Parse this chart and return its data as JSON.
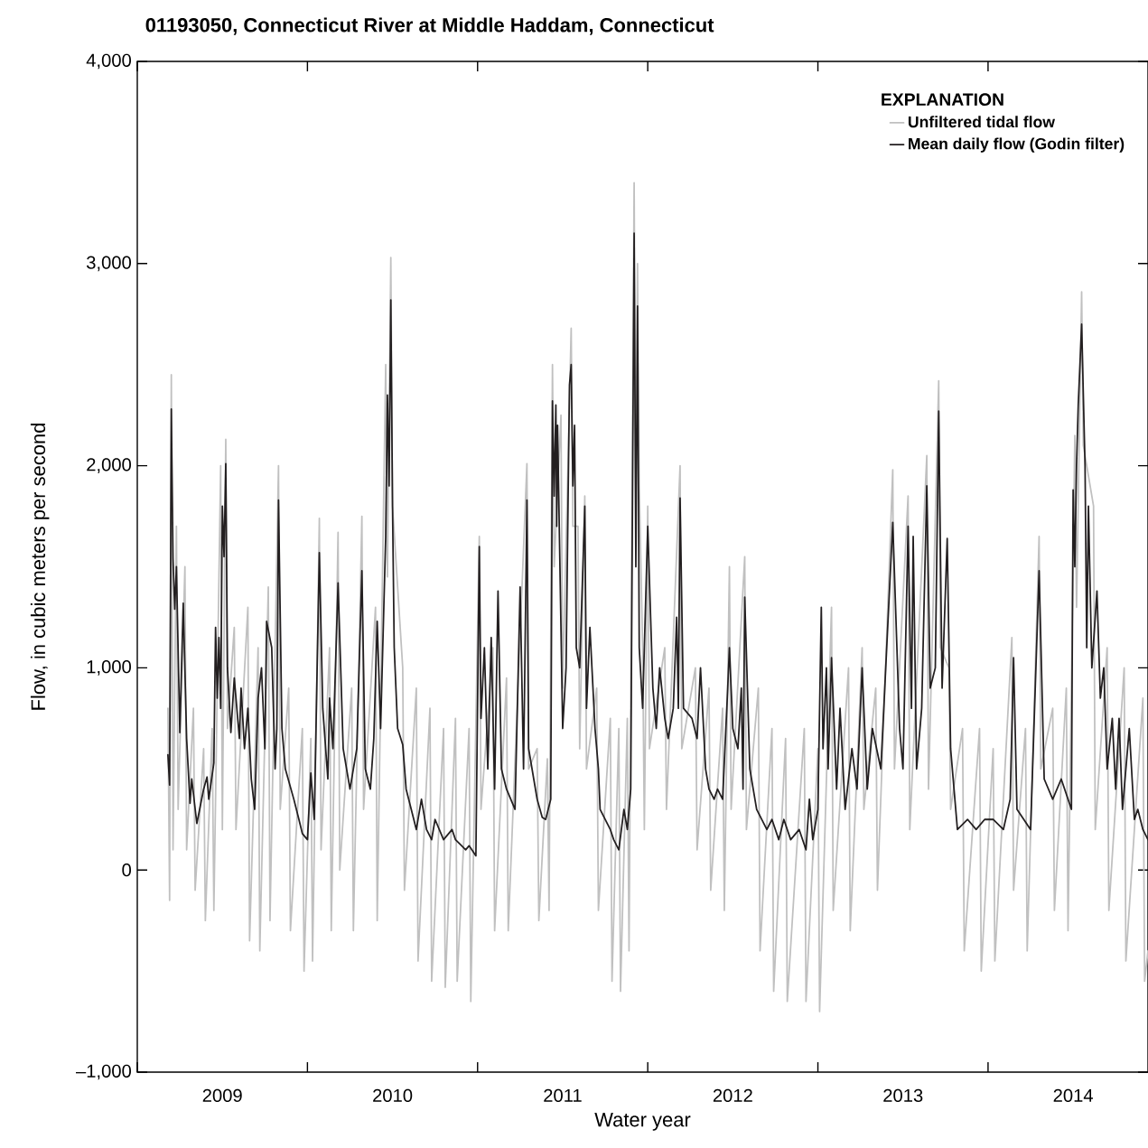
{
  "chart_data": {
    "type": "line",
    "title": "01193050, Connecticut River at Middle Haddam, Connecticut",
    "xlabel": "Water year",
    "ylabel": "Flow, in cubic meters per second",
    "legend_title": "EXPLANATION",
    "legend": "top right",
    "xlim": [
      2009,
      2014.94
    ],
    "ylim": [
      -1000,
      4000
    ],
    "xticks": [
      {
        "value": 2009,
        "label": null
      },
      {
        "value": 2010,
        "label": null
      },
      {
        "value": 2011,
        "label": null
      },
      {
        "value": 2012,
        "label": null
      },
      {
        "value": 2013,
        "label": null
      },
      {
        "value": 2014,
        "label": null
      },
      {
        "value": 2009.5,
        "label": "2009"
      },
      {
        "value": 2010.5,
        "label": "2010"
      },
      {
        "value": 2011.5,
        "label": "2011"
      },
      {
        "value": 2012.5,
        "label": "2012"
      },
      {
        "value": 2013.5,
        "label": "2013"
      },
      {
        "value": 2014.5,
        "label": "2014"
      }
    ],
    "yticks": [
      {
        "value": -1000,
        "label": "–1,000"
      },
      0,
      {
        "value": 1000,
        "label": "1,000"
      },
      {
        "value": 2000,
        "label": "2,000"
      },
      {
        "value": 3000,
        "label": "3,000"
      },
      {
        "value": 4000,
        "label": "4,000"
      }
    ],
    "series": [
      {
        "name": "Unfiltered tidal flow",
        "color": "#c0c0c0",
        "x": [
          2009.18,
          2009.19,
          2009.2,
          2009.21,
          2009.23,
          2009.24,
          2009.28,
          2009.29,
          2009.33,
          2009.34,
          2009.39,
          2009.4,
          2009.44,
          2009.45,
          2009.49,
          2009.5,
          2009.52,
          2009.53,
          2009.57,
          2009.58,
          2009.65,
          2009.66,
          2009.71,
          2009.72,
          2009.77,
          2009.78,
          2009.83,
          2009.84,
          2009.89,
          2009.9,
          2009.97,
          2009.98,
          2010.02,
          2010.03,
          2010.07,
          2010.08,
          2010.13,
          2010.14,
          2010.18,
          2010.19,
          2010.26,
          2010.27,
          2010.32,
          2010.33,
          2010.4,
          2010.41,
          2010.46,
          2010.47,
          2010.49,
          2010.5,
          2010.56,
          2010.57,
          2010.64,
          2010.65,
          2010.72,
          2010.73,
          2010.8,
          2010.81,
          2010.87,
          2010.88,
          2010.95,
          2010.96,
          2011.01,
          2011.02,
          2011.09,
          2011.1,
          2011.17,
          2011.18,
          2011.29,
          2011.3,
          2011.35,
          2011.36,
          2011.41,
          2011.42,
          2011.44,
          2011.45,
          2011.49,
          2011.5,
          2011.55,
          2011.56,
          2011.59,
          2011.6,
          2011.63,
          2011.64,
          2011.7,
          2011.71,
          2011.78,
          2011.79,
          2011.83,
          2011.84,
          2011.88,
          2011.89,
          2011.92,
          2011.93,
          2011.94,
          2011.95,
          2011.97,
          2011.98,
          2012.0,
          2012.01,
          2012.1,
          2012.11,
          2012.19,
          2012.2,
          2012.28,
          2012.29,
          2012.36,
          2012.37,
          2012.44,
          2012.45,
          2012.48,
          2012.49,
          2012.57,
          2012.58,
          2012.65,
          2012.66,
          2012.73,
          2012.74,
          2012.81,
          2012.82,
          2012.92,
          2012.93,
          2013.0,
          2013.01,
          2013.08,
          2013.09,
          2013.18,
          2013.19,
          2013.26,
          2013.27,
          2013.34,
          2013.35,
          2013.44,
          2013.45,
          2013.53,
          2013.54,
          2013.64,
          2013.65,
          2013.71,
          2013.72,
          2013.77,
          2013.78,
          2013.85,
          2013.86,
          2013.95,
          2013.96,
          2014.03,
          2014.04,
          2014.14,
          2014.15,
          2014.22,
          2014.23,
          2014.3,
          2014.31,
          2014.38,
          2014.39,
          2014.46,
          2014.47,
          2014.51,
          2014.52,
          2014.55,
          2014.56,
          2014.62,
          2014.63,
          2014.7,
          2014.71,
          2014.8,
          2014.81,
          2014.91,
          2014.92,
          2014.94
        ],
        "values": [
          800,
          -150,
          2450,
          100,
          1700,
          300,
          1500,
          100,
          800,
          -100,
          600,
          -250,
          700,
          -200,
          2000,
          200,
          2130,
          700,
          1200,
          200,
          1300,
          -350,
          1100,
          -400,
          1400,
          -250,
          2000,
          300,
          900,
          -300,
          700,
          -500,
          650,
          -450,
          1740,
          100,
          1100,
          -300,
          1670,
          0,
          900,
          -300,
          1750,
          300,
          1300,
          -250,
          2500,
          1450,
          3030,
          1800,
          1000,
          -100,
          900,
          -450,
          800,
          -550,
          700,
          -580,
          750,
          -550,
          700,
          -650,
          1650,
          300,
          1100,
          -300,
          950,
          -300,
          2010,
          500,
          600,
          -250,
          550,
          -200,
          2500,
          1500,
          2250,
          900,
          2680,
          1700,
          1700,
          600,
          1850,
          500,
          900,
          -200,
          750,
          -550,
          700,
          -600,
          750,
          -400,
          3400,
          1800,
          3000,
          1900,
          1100,
          200,
          1800,
          600,
          1100,
          300,
          2000,
          600,
          1000,
          100,
          900,
          -100,
          800,
          -200,
          1500,
          300,
          1550,
          200,
          900,
          -400,
          700,
          -600,
          650,
          -650,
          700,
          -650,
          600,
          -700,
          1300,
          -200,
          1000,
          -300,
          1100,
          300,
          900,
          -100,
          1980,
          500,
          1850,
          200,
          2050,
          400,
          2420,
          1100,
          1000,
          300,
          700,
          -400,
          700,
          -500,
          600,
          -450,
          1150,
          -100,
          700,
          -400,
          1650,
          500,
          800,
          -200,
          900,
          -300,
          2150,
          1300,
          2860,
          2100,
          1800,
          200,
          1100,
          -200,
          1000,
          -450,
          850,
          -550,
          -400
        ]
      },
      {
        "name": "Mean daily flow (Godin filter)",
        "color": "#231f20",
        "x": [
          2009.18,
          2009.19,
          2009.2,
          2009.21,
          2009.22,
          2009.23,
          2009.25,
          2009.27,
          2009.29,
          2009.31,
          2009.32,
          2009.35,
          2009.39,
          2009.41,
          2009.42,
          2009.45,
          2009.46,
          2009.47,
          2009.48,
          2009.49,
          2009.5,
          2009.51,
          2009.52,
          2009.53,
          2009.55,
          2009.57,
          2009.6,
          2009.61,
          2009.63,
          2009.65,
          2009.67,
          2009.69,
          2009.71,
          2009.73,
          2009.75,
          2009.76,
          2009.79,
          2009.8,
          2009.81,
          2009.82,
          2009.83,
          2009.85,
          2009.87,
          2009.92,
          2009.95,
          2009.97,
          2010.0,
          2010.02,
          2010.04,
          2010.07,
          2010.09,
          2010.12,
          2010.13,
          2010.15,
          2010.18,
          2010.21,
          2010.25,
          2010.29,
          2010.32,
          2010.34,
          2010.37,
          2010.39,
          2010.41,
          2010.43,
          2010.46,
          2010.47,
          2010.48,
          2010.49,
          2010.5,
          2010.51,
          2010.53,
          2010.56,
          2010.58,
          2010.61,
          2010.64,
          2010.67,
          2010.7,
          2010.73,
          2010.75,
          2010.8,
          2010.85,
          2010.87,
          2010.93,
          2010.95,
          2010.99,
          2011.01,
          2011.02,
          2011.04,
          2011.06,
          2011.08,
          2011.1,
          2011.12,
          2011.14,
          2011.17,
          2011.22,
          2011.25,
          2011.27,
          2011.29,
          2011.3,
          2011.33,
          2011.35,
          2011.38,
          2011.4,
          2011.43,
          2011.44,
          2011.45,
          2011.46,
          2011.465,
          2011.47,
          2011.5,
          2011.52,
          2011.54,
          2011.55,
          2011.56,
          2011.57,
          2011.58,
          2011.6,
          2011.63,
          2011.64,
          2011.66,
          2011.69,
          2011.71,
          2011.72,
          2011.78,
          2011.8,
          2011.83,
          2011.86,
          2011.88,
          2011.9,
          2011.92,
          2011.93,
          2011.94,
          2011.95,
          2011.97,
          2012.0,
          2012.03,
          2012.05,
          2012.07,
          2012.1,
          2012.12,
          2012.15,
          2012.17,
          2012.18,
          2012.19,
          2012.21,
          2012.26,
          2012.29,
          2012.31,
          2012.34,
          2012.36,
          2012.39,
          2012.41,
          2012.44,
          2012.47,
          2012.48,
          2012.5,
          2012.53,
          2012.55,
          2012.56,
          2012.57,
          2012.6,
          2012.64,
          2012.7,
          2012.73,
          2012.77,
          2012.8,
          2012.84,
          2012.89,
          2012.93,
          2012.95,
          2012.97,
          2013.0,
          2013.02,
          2013.03,
          2013.05,
          2013.06,
          2013.08,
          2013.11,
          2013.13,
          2013.16,
          2013.2,
          2013.23,
          2013.26,
          2013.29,
          2013.32,
          2013.37,
          2013.44,
          2013.48,
          2013.5,
          2013.53,
          2013.55,
          2013.56,
          2013.58,
          2013.61,
          2013.64,
          2013.66,
          2013.69,
          2013.71,
          2013.73,
          2013.76,
          2013.78,
          2013.8,
          2013.82,
          2013.88,
          2013.93,
          2013.98,
          2014.03,
          2014.09,
          2014.13,
          2014.15,
          2014.17,
          2014.25,
          2014.3,
          2014.33,
          2014.38,
          2014.43,
          2014.49,
          2014.5,
          2014.51,
          2014.52,
          2014.53,
          2014.55,
          2014.57,
          2014.58,
          2014.59,
          2014.61,
          2014.64,
          2014.66,
          2014.68,
          2014.7,
          2014.73,
          2014.75,
          2014.77,
          2014.79,
          2014.83,
          2014.86,
          2014.88,
          2014.91,
          2014.94
        ],
        "values": [
          570,
          420,
          2280,
          1540,
          1290,
          1500,
          680,
          1320,
          650,
          330,
          450,
          230,
          400,
          460,
          350,
          530,
          1200,
          850,
          1150,
          800,
          1800,
          1550,
          2010,
          1000,
          680,
          950,
          650,
          900,
          600,
          800,
          450,
          300,
          850,
          1000,
          600,
          1230,
          1100,
          800,
          500,
          700,
          1830,
          700,
          500,
          350,
          250,
          180,
          150,
          480,
          250,
          1570,
          800,
          450,
          850,
          600,
          1420,
          600,
          400,
          600,
          1480,
          500,
          400,
          650,
          1230,
          700,
          1650,
          2350,
          1900,
          2820,
          1800,
          1100,
          700,
          620,
          400,
          300,
          200,
          350,
          200,
          150,
          250,
          150,
          200,
          150,
          100,
          120,
          70,
          1600,
          750,
          1100,
          500,
          1150,
          400,
          1380,
          500,
          400,
          300,
          1400,
          500,
          1830,
          600,
          450,
          350,
          260,
          250,
          350,
          2320,
          1850,
          2300,
          1700,
          2200,
          700,
          1000,
          2400,
          2500,
          1900,
          2200,
          1100,
          1000,
          1800,
          800,
          1200,
          700,
          500,
          300,
          200,
          150,
          100,
          300,
          200,
          400,
          3150,
          1500,
          2790,
          1100,
          800,
          1700,
          900,
          700,
          1000,
          750,
          650,
          800,
          1250,
          800,
          1840,
          800,
          750,
          650,
          1000,
          500,
          400,
          350,
          400,
          350,
          900,
          1100,
          700,
          600,
          900,
          400,
          1350,
          500,
          300,
          200,
          250,
          150,
          250,
          150,
          200,
          100,
          350,
          150,
          300,
          1300,
          600,
          1000,
          500,
          1050,
          400,
          800,
          300,
          600,
          400,
          1000,
          400,
          700,
          500,
          1720,
          700,
          500,
          1700,
          800,
          1650,
          500,
          800,
          1900,
          900,
          1000,
          2270,
          900,
          1640,
          600,
          400,
          200,
          250,
          200,
          250,
          250,
          200,
          350,
          1050,
          300,
          200,
          1480,
          450,
          350,
          450,
          300,
          1880,
          1500,
          2000,
          2300,
          2700,
          2000,
          1100,
          1800,
          1000,
          1380,
          850,
          1000,
          500,
          750,
          400,
          750,
          300,
          700,
          250,
          300,
          200,
          150
        ]
      }
    ]
  }
}
